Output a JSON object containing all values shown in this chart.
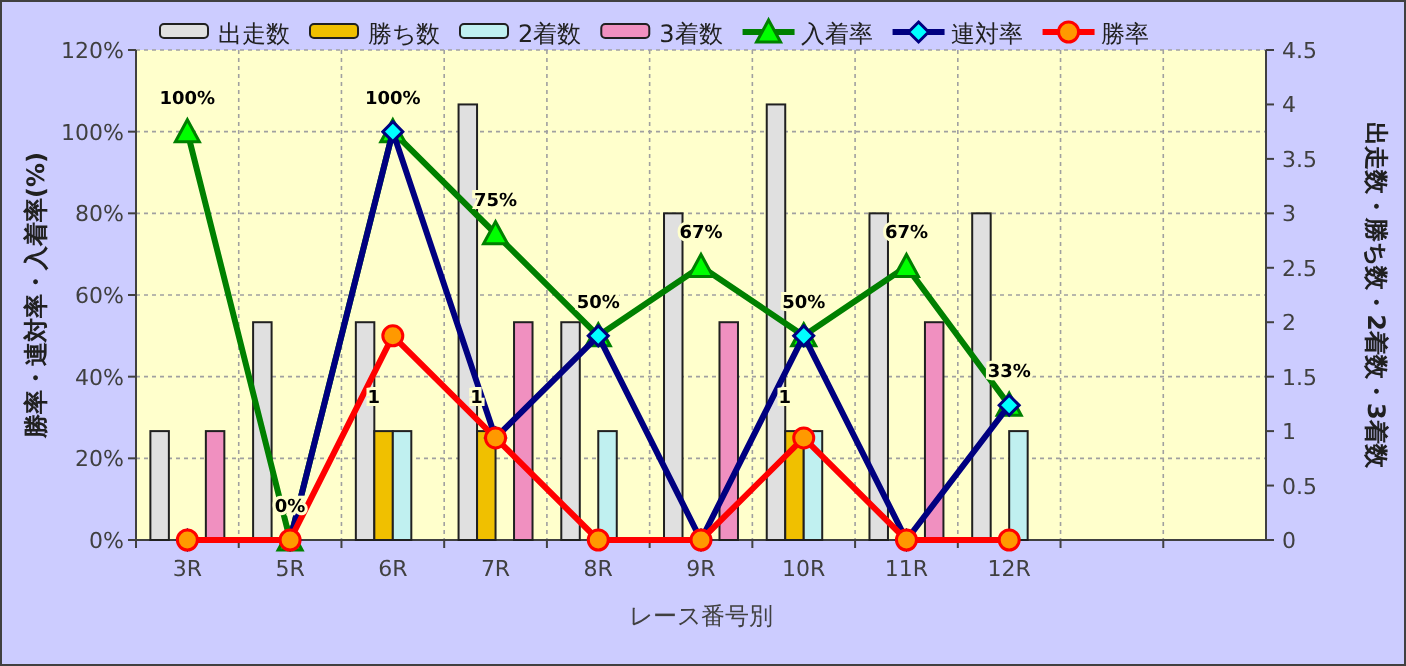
{
  "chart_data": {
    "type": "bar",
    "xlabel": "レース番号別",
    "ylabel": "勝率・連対率・入着率(%)",
    "y2label": "出走数・勝ち数・2着数・3着数",
    "categories": [
      "3R",
      "5R",
      "6R",
      "7R",
      "8R",
      "9R",
      "10R",
      "11R",
      "12R",
      null,
      null
    ],
    "series": [
      {
        "name": "出走数",
        "axis": "y2",
        "color": "#e0e0e0",
        "values": [
          1,
          2,
          2,
          4,
          2,
          3,
          4,
          3,
          3,
          null,
          null
        ]
      },
      {
        "name": "勝ち数",
        "axis": "y2",
        "color": "#f0c000",
        "values": [
          0,
          0,
          1,
          1,
          0,
          0,
          1,
          0,
          0,
          null,
          null
        ],
        "value_labels": [
          null,
          null,
          "1",
          "1",
          null,
          null,
          "1",
          null,
          null,
          null,
          null
        ]
      },
      {
        "name": "2着数",
        "axis": "y2",
        "color": "#c0f0f0",
        "values": [
          0,
          0,
          1,
          0,
          1,
          0,
          1,
          0,
          1,
          null,
          null
        ]
      },
      {
        "name": "3着数",
        "axis": "y2",
        "color": "#f090c0",
        "values": [
          1,
          0,
          0,
          2,
          0,
          2,
          0,
          2,
          0,
          null,
          null
        ]
      },
      {
        "name": "入着率",
        "type": "line",
        "color": "#008000",
        "marker": "triangle",
        "values": [
          100,
          0,
          100,
          75,
          50,
          67,
          50,
          67,
          33,
          null,
          null
        ],
        "value_labels": [
          "100%",
          "0%",
          "100%",
          "75%",
          "50%",
          "67%",
          "50%",
          "67%",
          "33%",
          null,
          null
        ]
      },
      {
        "name": "連対率",
        "type": "line",
        "color": "#000080",
        "marker": "diamond",
        "values": [
          0,
          0,
          100,
          25,
          50,
          0,
          50,
          0,
          33,
          null,
          null
        ]
      },
      {
        "name": "勝率",
        "type": "line",
        "color": "#ff0000",
        "marker": "circle",
        "values": [
          0,
          0,
          50,
          25,
          0,
          0,
          25,
          0,
          0,
          null,
          null
        ]
      }
    ],
    "ylim": [
      0,
      120
    ],
    "yticks": [
      {
        "value": 0,
        "label": "0%"
      },
      {
        "value": 20,
        "label": "20%"
      },
      {
        "value": 40,
        "label": "40%"
      },
      {
        "value": 60,
        "label": "60%"
      },
      {
        "value": 80,
        "label": "80%"
      },
      {
        "value": 100,
        "label": "100%"
      },
      {
        "value": 120,
        "label": "120%"
      }
    ],
    "y2lim": [
      0,
      4.5
    ],
    "y2ticks": [
      0,
      0.5,
      1,
      1.5,
      2,
      2.5,
      3,
      3.5,
      4,
      4.5
    ],
    "grid": true,
    "legend": "top"
  }
}
